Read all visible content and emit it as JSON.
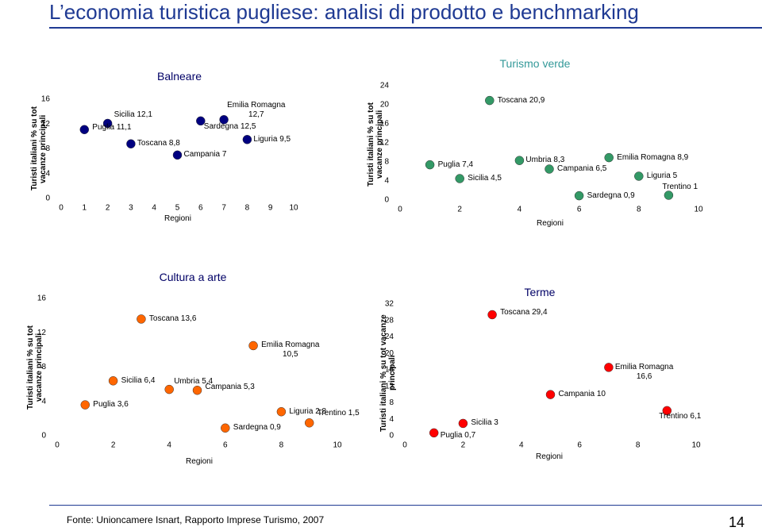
{
  "header": {
    "title": "L’economia turistica pugliese: analisi di prodotto e benchmarking"
  },
  "chart_data": [
    {
      "type": "scatter",
      "title": "Balneare",
      "x_label": "Regioni",
      "y_label": "Turisti italiani % su tot vacanze principali",
      "xlim": [
        0,
        10
      ],
      "xticks": [
        0,
        1,
        2,
        3,
        4,
        5,
        6,
        7,
        8,
        9,
        10
      ],
      "ylim": [
        0,
        16
      ],
      "yticks": [
        0,
        4,
        8,
        12,
        16
      ],
      "series": [
        {
          "color": "#000080",
          "x": [
            1,
            2,
            3,
            5,
            6,
            7,
            8
          ],
          "values": [
            11.1,
            12.1,
            8.8,
            7,
            12.5,
            12.7,
            9.5
          ],
          "value_labels": [
            "Puglia 11,1",
            "Sicilia 12,1",
            "Toscana 8,8",
            "Campania 7",
            "Sardegna 12,5",
            "Emilia Romagna\n12,7",
            "Liguria 9,5"
          ]
        }
      ]
    },
    {
      "type": "scatter",
      "title": "Turismo verde",
      "x_label": "Regioni",
      "y_label": "Turisti italiani % su tot vacanze principali",
      "xlim": [
        0,
        10
      ],
      "xticks": [
        0,
        2,
        4,
        6,
        8,
        10
      ],
      "ylim": [
        0,
        24
      ],
      "yticks": [
        0,
        4,
        8,
        12,
        16,
        20,
        24
      ],
      "series": [
        {
          "color": "#339966",
          "x": [
            1,
            2,
            3,
            4,
            5,
            6,
            7,
            8,
            9
          ],
          "values": [
            7.4,
            4.5,
            20.9,
            8.3,
            6.5,
            0.9,
            8.9,
            5,
            1
          ],
          "value_labels": [
            "Puglia 7,4",
            "Sicilia 4,5",
            "Toscana 20,9",
            "Umbria 8,3",
            "Campania 6,5",
            "Sardegna 0,9",
            "Emilia Romagna 8,9",
            "Liguria 5",
            "Trentino 1"
          ]
        }
      ]
    },
    {
      "type": "scatter",
      "title": "Cultura a arte",
      "x_label": "Regioni",
      "y_label": "Turisti italiani % su tot vacanze principali",
      "xlim": [
        0,
        10
      ],
      "xticks": [
        0,
        2,
        4,
        6,
        8,
        10
      ],
      "ylim": [
        0,
        16
      ],
      "yticks": [
        0,
        4,
        8,
        12,
        16
      ],
      "series": [
        {
          "color": "#ff6600",
          "x": [
            1,
            2,
            3,
            4,
            5,
            6,
            7,
            8,
            9
          ],
          "values": [
            3.6,
            6.4,
            13.6,
            5.4,
            5.3,
            0.9,
            10.5,
            2.8,
            1.5
          ],
          "value_labels": [
            "Puglia 3,6",
            "Sicilia 6,4",
            "Toscana 13,6",
            "Umbria 5,4",
            "Campania 5,3",
            "Sardegna 0,9",
            "Emilia Romagna\n10,5",
            "Liguria 2,8",
            "Trentino 1,5"
          ]
        }
      ]
    },
    {
      "type": "scatter",
      "title": "Terme",
      "x_label": "Regioni",
      "y_label": "Turisti italiani % su tot vacanze principali",
      "xlim": [
        0,
        10
      ],
      "xticks": [
        0,
        2,
        4,
        6,
        8,
        10
      ],
      "ylim": [
        0,
        32
      ],
      "yticks": [
        0,
        4,
        8,
        12,
        16,
        20,
        24,
        28,
        32
      ],
      "series": [
        {
          "color": "#ff0000",
          "x": [
            1,
            2,
            3,
            5,
            7,
            9
          ],
          "values": [
            0.7,
            3,
            29.4,
            10,
            16.6,
            6.1
          ],
          "value_labels": [
            "Puglia 0,7",
            "Sicilia 3",
            "Toscana 29,4",
            "Campania 10",
            "Emilia Romagna\n16,6",
            "Trentino 6,1"
          ]
        }
      ]
    }
  ],
  "footer": {
    "source": "Fonte: Unioncamere Isnart, Rapporto Imprese Turismo, 2007",
    "page": "14"
  }
}
